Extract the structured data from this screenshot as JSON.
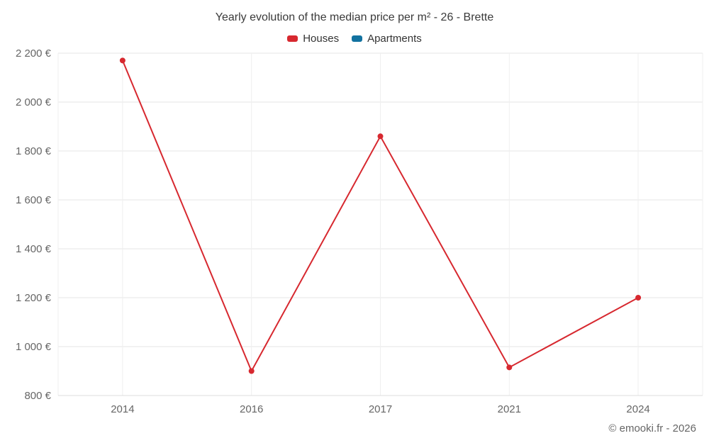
{
  "title": "Yearly evolution of the median price per m² - 26 - Brette",
  "footer": "© emooki.fr - 2026",
  "legend": [
    {
      "label": "Houses",
      "color": "#d7282f"
    },
    {
      "label": "Apartments",
      "color": "#1272a0"
    }
  ],
  "chart_data": {
    "type": "line",
    "title": "Yearly evolution of the median price per m² - 26 - Brette",
    "categories": [
      "2014",
      "2016",
      "2017",
      "2021",
      "2024"
    ],
    "series": [
      {
        "name": "Houses",
        "color": "#d7282f",
        "values": [
          2170,
          900,
          1860,
          915,
          1200
        ]
      },
      {
        "name": "Apartments",
        "color": "#1272a0",
        "values": []
      }
    ],
    "xlabel": "",
    "ylabel": "",
    "ylim": [
      800,
      2200
    ],
    "ytick_step": 200,
    "ytick_labels": [
      "800 €",
      "1 000 €",
      "1 200 €",
      "1 400 €",
      "1 600 €",
      "1 800 €",
      "2 000 €",
      "2 200 €"
    ],
    "grid": true,
    "legend_position": "top",
    "grid_color": "#e6e6e6",
    "axis_label_color": "#666666"
  }
}
